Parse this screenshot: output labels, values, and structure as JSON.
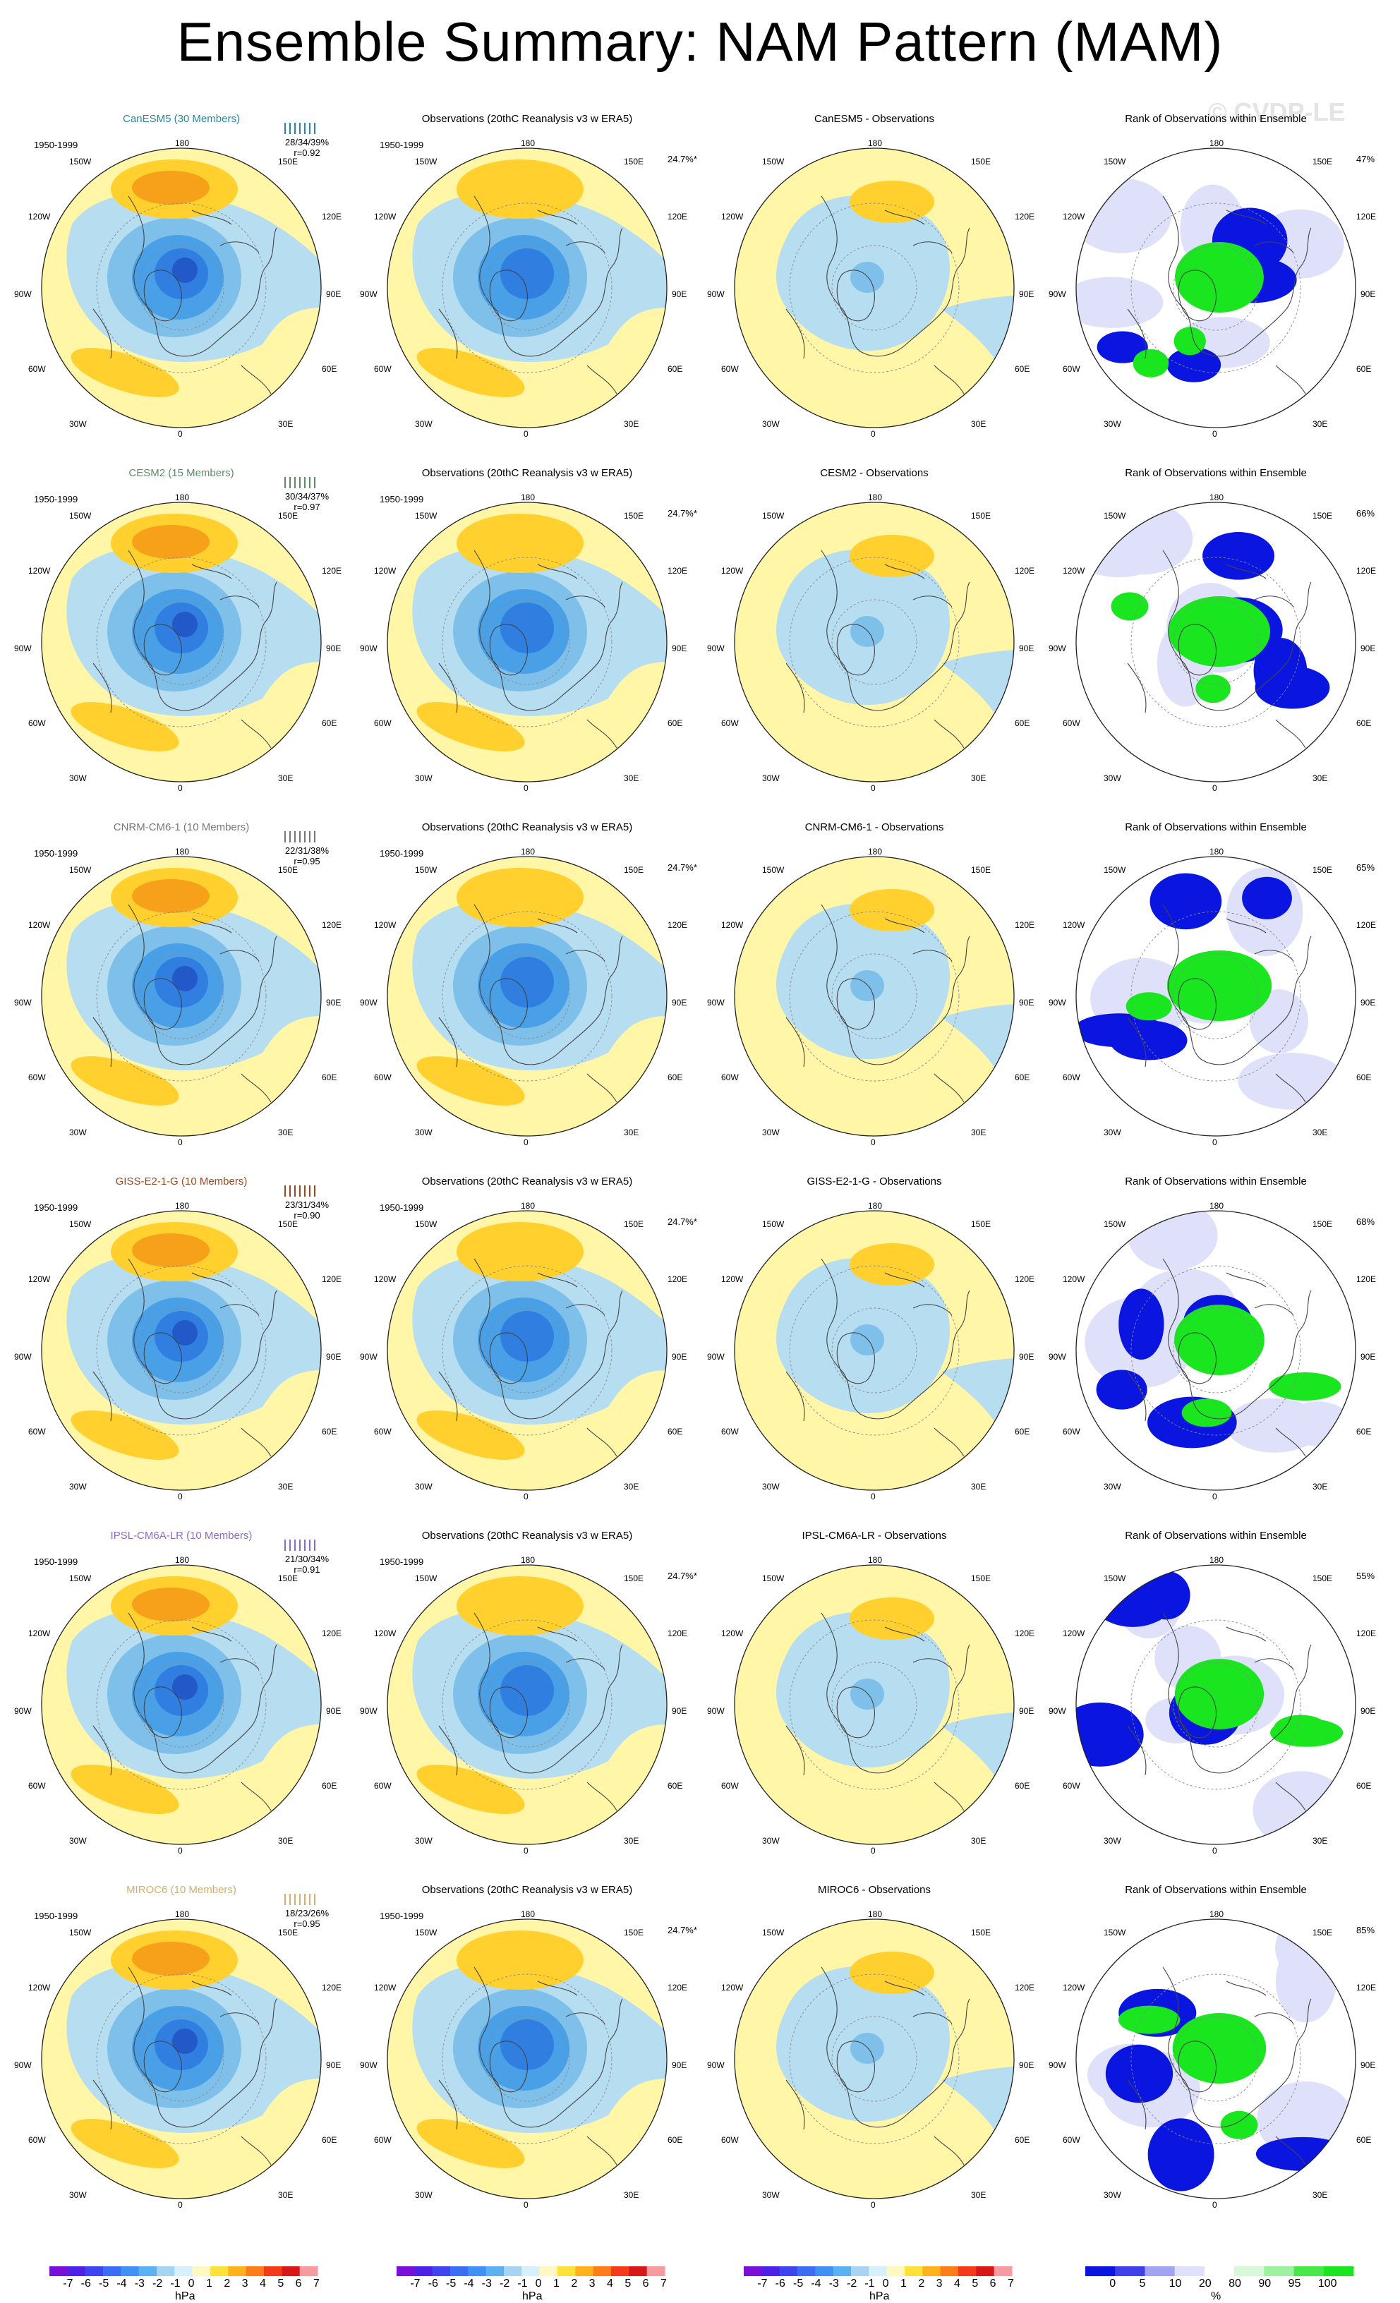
{
  "title": "Ensemble Summary: NAM Pattern (MAM)",
  "watermark": "© CVDP-LE",
  "period": "1950-1999",
  "obs_stat": "24.7%*",
  "column_titles": {
    "obs": "Observations (20thC Reanalysis v3 w ERA5)",
    "rank": "Rank of Observations within Ensemble"
  },
  "lon_labels": {
    "top": "180",
    "bottom": "0",
    "left": "90W",
    "right": "90E",
    "upper_left": "120W",
    "upper_left2": "150W",
    "upper_right": "150E",
    "upper_right2": "120E",
    "lower_left": "60W",
    "lower_left2": "30W",
    "lower_right": "30E",
    "lower_right2": "60E"
  },
  "models": [
    {
      "name": "CanESM5 (30 Members)",
      "diff_title": "CanESM5 - Observations",
      "color": "#2a86a8",
      "stats": "28/34/39%",
      "r": "r=0.92",
      "rank_pct": "47%"
    },
    {
      "name": "CESM2 (15 Members)",
      "diff_title": "CESM2 - Observations",
      "color": "#5d8c68",
      "stats": "30/34/37%",
      "r": "r=0.97",
      "rank_pct": "66%"
    },
    {
      "name": "CNRM-CM6-1 (10 Members)",
      "diff_title": "CNRM-CM6-1 - Observations",
      "color": "#777777",
      "stats": "22/31/38%",
      "r": "r=0.95",
      "rank_pct": "65%"
    },
    {
      "name": "GISS-E2-1-G (10 Members)",
      "diff_title": "GISS-E2-1-G - Observations",
      "color": "#9a4a22",
      "stats": "23/31/34%",
      "r": "r=0.90",
      "rank_pct": "68%"
    },
    {
      "name": "IPSL-CM6A-LR (10 Members)",
      "diff_title": "IPSL-CM6A-LR - Observations",
      "color": "#8c6bc8",
      "stats": "21/30/34%",
      "r": "r=0.91",
      "rank_pct": "55%"
    },
    {
      "name": "MIROC6 (10 Members)",
      "diff_title": "MIROC6 - Observations",
      "color": "#d7ae72",
      "stats": "18/23/26%",
      "r": "r=0.95",
      "rank_pct": "85%"
    }
  ],
  "colors": {
    "yellow": "#fff6a8",
    "lightblue": "#b7ddf1",
    "blue2": "#7fc0ea",
    "blue3": "#4aa0e6",
    "blue4": "#2f7ee0",
    "blue5": "#2358c8",
    "orange1": "#ffd02e",
    "orange2": "#f7a11a",
    "orange3": "#f07018",
    "rank_blue": "#0a16e0",
    "rank_light": "#dfe0fa",
    "rank_green": "#19e61e",
    "rank_lightgreen": "#d8f8d8"
  },
  "chart_data": {
    "type": "heatmap",
    "layout": "6 rows x 4 columns of polar stereographic maps",
    "hpa_colorbar": {
      "levels": [
        "-7",
        "-6",
        "-5",
        "-4",
        "-3",
        "-2",
        "-1",
        "0",
        "1",
        "2",
        "3",
        "4",
        "5",
        "6",
        "7"
      ],
      "colors": [
        "#7a10d8",
        "#4d22e8",
        "#3d44f0",
        "#3b6ef2",
        "#3f92f4",
        "#5ab2f2",
        "#a6d4f2",
        "#d8f0fb",
        "#fff8c0",
        "#ffe13a",
        "#ffb21e",
        "#ff7d18",
        "#f43c1c",
        "#d81818",
        "#f79ba0"
      ],
      "unit": "hPa"
    },
    "rank_colorbar": {
      "levels": [
        "0",
        "5",
        "10",
        "20",
        "80",
        "90",
        "95",
        "100"
      ],
      "colors": [
        "#0a16e0",
        "#4040ea",
        "#a0a4f2",
        "#dfe0fa",
        "#ffffff",
        "#d8f8d8",
        "#9ef19e",
        "#48e84a",
        "#19e61e"
      ],
      "unit": "%"
    }
  }
}
